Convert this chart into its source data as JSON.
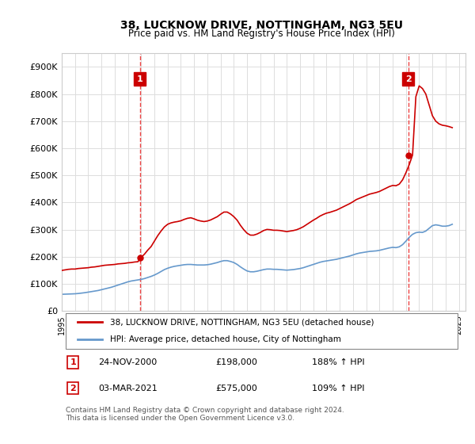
{
  "title": "38, LUCKNOW DRIVE, NOTTINGHAM, NG3 5EU",
  "subtitle": "Price paid vs. HM Land Registry's House Price Index (HPI)",
  "ylabel_ticks": [
    "£0",
    "£100K",
    "£200K",
    "£300K",
    "£400K",
    "£500K",
    "£600K",
    "£700K",
    "£800K",
    "£900K"
  ],
  "ytick_values": [
    0,
    100000,
    200000,
    300000,
    400000,
    500000,
    600000,
    700000,
    800000,
    900000
  ],
  "ylim": [
    0,
    950000
  ],
  "xlim_start": 1995.0,
  "xlim_end": 2025.5,
  "sale1_x": 2000.9,
  "sale1_y": 198000,
  "sale2_x": 2021.17,
  "sale2_y": 575000,
  "sale1_label": "1",
  "sale2_label": "2",
  "red_color": "#cc0000",
  "blue_color": "#6699cc",
  "dashed_red_color": "#ee4444",
  "annotation_box_color": "#cc0000",
  "background_color": "#ffffff",
  "grid_color": "#dddddd",
  "legend_label_red": "38, LUCKNOW DRIVE, NOTTINGHAM, NG3 5EU (detached house)",
  "legend_label_blue": "HPI: Average price, detached house, City of Nottingham",
  "table_row1": [
    "1",
    "24-NOV-2000",
    "£198,000",
    "188% ↑ HPI"
  ],
  "table_row2": [
    "2",
    "03-MAR-2021",
    "£575,000",
    "109% ↑ HPI"
  ],
  "footnote": "Contains HM Land Registry data © Crown copyright and database right 2024.\nThis data is licensed under the Open Government Licence v3.0.",
  "hpi_blue_data_x": [
    1995.0,
    1995.25,
    1995.5,
    1995.75,
    1996.0,
    1996.25,
    1996.5,
    1996.75,
    1997.0,
    1997.25,
    1997.5,
    1997.75,
    1998.0,
    1998.25,
    1998.5,
    1998.75,
    1999.0,
    1999.25,
    1999.5,
    1999.75,
    2000.0,
    2000.25,
    2000.5,
    2000.75,
    2001.0,
    2001.25,
    2001.5,
    2001.75,
    2002.0,
    2002.25,
    2002.5,
    2002.75,
    2003.0,
    2003.25,
    2003.5,
    2003.75,
    2004.0,
    2004.25,
    2004.5,
    2004.75,
    2005.0,
    2005.25,
    2005.5,
    2005.75,
    2006.0,
    2006.25,
    2006.5,
    2006.75,
    2007.0,
    2007.25,
    2007.5,
    2007.75,
    2008.0,
    2008.25,
    2008.5,
    2008.75,
    2009.0,
    2009.25,
    2009.5,
    2009.75,
    2010.0,
    2010.25,
    2010.5,
    2010.75,
    2011.0,
    2011.25,
    2011.5,
    2011.75,
    2012.0,
    2012.25,
    2012.5,
    2012.75,
    2013.0,
    2013.25,
    2013.5,
    2013.75,
    2014.0,
    2014.25,
    2014.5,
    2014.75,
    2015.0,
    2015.25,
    2015.5,
    2015.75,
    2016.0,
    2016.25,
    2016.5,
    2016.75,
    2017.0,
    2017.25,
    2017.5,
    2017.75,
    2018.0,
    2018.25,
    2018.5,
    2018.75,
    2019.0,
    2019.25,
    2019.5,
    2019.75,
    2020.0,
    2020.25,
    2020.5,
    2020.75,
    2021.0,
    2021.25,
    2021.5,
    2021.75,
    2022.0,
    2022.25,
    2022.5,
    2022.75,
    2023.0,
    2023.25,
    2023.5,
    2023.75,
    2024.0,
    2024.25,
    2024.5
  ],
  "hpi_blue_data_y": [
    62000,
    62500,
    63000,
    63500,
    64000,
    65000,
    66500,
    68000,
    70000,
    72000,
    74000,
    76000,
    79000,
    82000,
    85000,
    88000,
    92000,
    96000,
    100000,
    104000,
    108000,
    111000,
    113000,
    115000,
    117000,
    120000,
    124000,
    128000,
    133000,
    139000,
    146000,
    153000,
    158000,
    162000,
    165000,
    167000,
    169000,
    171000,
    172000,
    172000,
    171000,
    170000,
    170000,
    170000,
    171000,
    173000,
    176000,
    179000,
    183000,
    186000,
    186000,
    183000,
    179000,
    172000,
    163000,
    155000,
    148000,
    145000,
    145000,
    147000,
    150000,
    153000,
    155000,
    155000,
    154000,
    154000,
    153000,
    152000,
    151000,
    152000,
    153000,
    155000,
    157000,
    160000,
    164000,
    168000,
    172000,
    176000,
    180000,
    183000,
    185000,
    187000,
    189000,
    191000,
    194000,
    197000,
    200000,
    203000,
    207000,
    211000,
    214000,
    216000,
    218000,
    220000,
    221000,
    222000,
    224000,
    227000,
    230000,
    233000,
    235000,
    234000,
    237000,
    245000,
    258000,
    272000,
    283000,
    289000,
    291000,
    290000,
    295000,
    305000,
    315000,
    318000,
    316000,
    313000,
    313000,
    315000,
    320000
  ],
  "price_red_data_x": [
    1995.0,
    1995.25,
    1995.5,
    1995.75,
    1996.0,
    1996.25,
    1996.5,
    1996.75,
    1997.0,
    1997.25,
    1997.5,
    1997.75,
    1998.0,
    1998.25,
    1998.5,
    1998.75,
    1999.0,
    1999.25,
    1999.5,
    1999.75,
    2000.0,
    2000.25,
    2000.5,
    2000.75,
    2001.0,
    2001.25,
    2001.5,
    2001.75,
    2002.0,
    2002.25,
    2002.5,
    2002.75,
    2003.0,
    2003.25,
    2003.5,
    2003.75,
    2004.0,
    2004.25,
    2004.5,
    2004.75,
    2005.0,
    2005.25,
    2005.5,
    2005.75,
    2006.0,
    2006.25,
    2006.5,
    2006.75,
    2007.0,
    2007.25,
    2007.5,
    2007.75,
    2008.0,
    2008.25,
    2008.5,
    2008.75,
    2009.0,
    2009.25,
    2009.5,
    2009.75,
    2010.0,
    2010.25,
    2010.5,
    2010.75,
    2011.0,
    2011.25,
    2011.5,
    2011.75,
    2012.0,
    2012.25,
    2012.5,
    2012.75,
    2013.0,
    2013.25,
    2013.5,
    2013.75,
    2014.0,
    2014.25,
    2014.5,
    2014.75,
    2015.0,
    2015.25,
    2015.5,
    2015.75,
    2016.0,
    2016.25,
    2016.5,
    2016.75,
    2017.0,
    2017.25,
    2017.5,
    2017.75,
    2018.0,
    2018.25,
    2018.5,
    2018.75,
    2019.0,
    2019.25,
    2019.5,
    2019.75,
    2020.0,
    2020.25,
    2020.5,
    2020.75,
    2021.0,
    2021.25,
    2021.5,
    2021.75,
    2022.0,
    2022.25,
    2022.5,
    2022.75,
    2023.0,
    2023.25,
    2023.5,
    2023.75,
    2024.0,
    2024.25,
    2024.5
  ],
  "price_red_data_y": [
    150000,
    152000,
    154000,
    155000,
    155000,
    157000,
    158000,
    159000,
    160000,
    162000,
    163000,
    165000,
    167000,
    169000,
    170000,
    171000,
    172000,
    174000,
    175000,
    176000,
    178000,
    179000,
    181000,
    182000,
    198000,
    210000,
    225000,
    238000,
    258000,
    278000,
    295000,
    310000,
    320000,
    325000,
    328000,
    330000,
    333000,
    338000,
    342000,
    344000,
    340000,
    335000,
    332000,
    330000,
    332000,
    336000,
    342000,
    348000,
    357000,
    365000,
    365000,
    358000,
    348000,
    335000,
    316000,
    300000,
    287000,
    280000,
    280000,
    284000,
    290000,
    297000,
    301000,
    300000,
    298000,
    298000,
    297000,
    295000,
    293000,
    295000,
    297000,
    300000,
    305000,
    311000,
    319000,
    327000,
    335000,
    342000,
    350000,
    356000,
    361000,
    364000,
    368000,
    372000,
    378000,
    384000,
    390000,
    396000,
    403000,
    411000,
    416000,
    421000,
    426000,
    431000,
    434000,
    437000,
    441000,
    447000,
    453000,
    459000,
    463000,
    462000,
    468000,
    484000,
    510000,
    540000,
    575000,
    790000,
    830000,
    820000,
    800000,
    760000,
    720000,
    700000,
    690000,
    685000,
    683000,
    680000,
    676000
  ]
}
